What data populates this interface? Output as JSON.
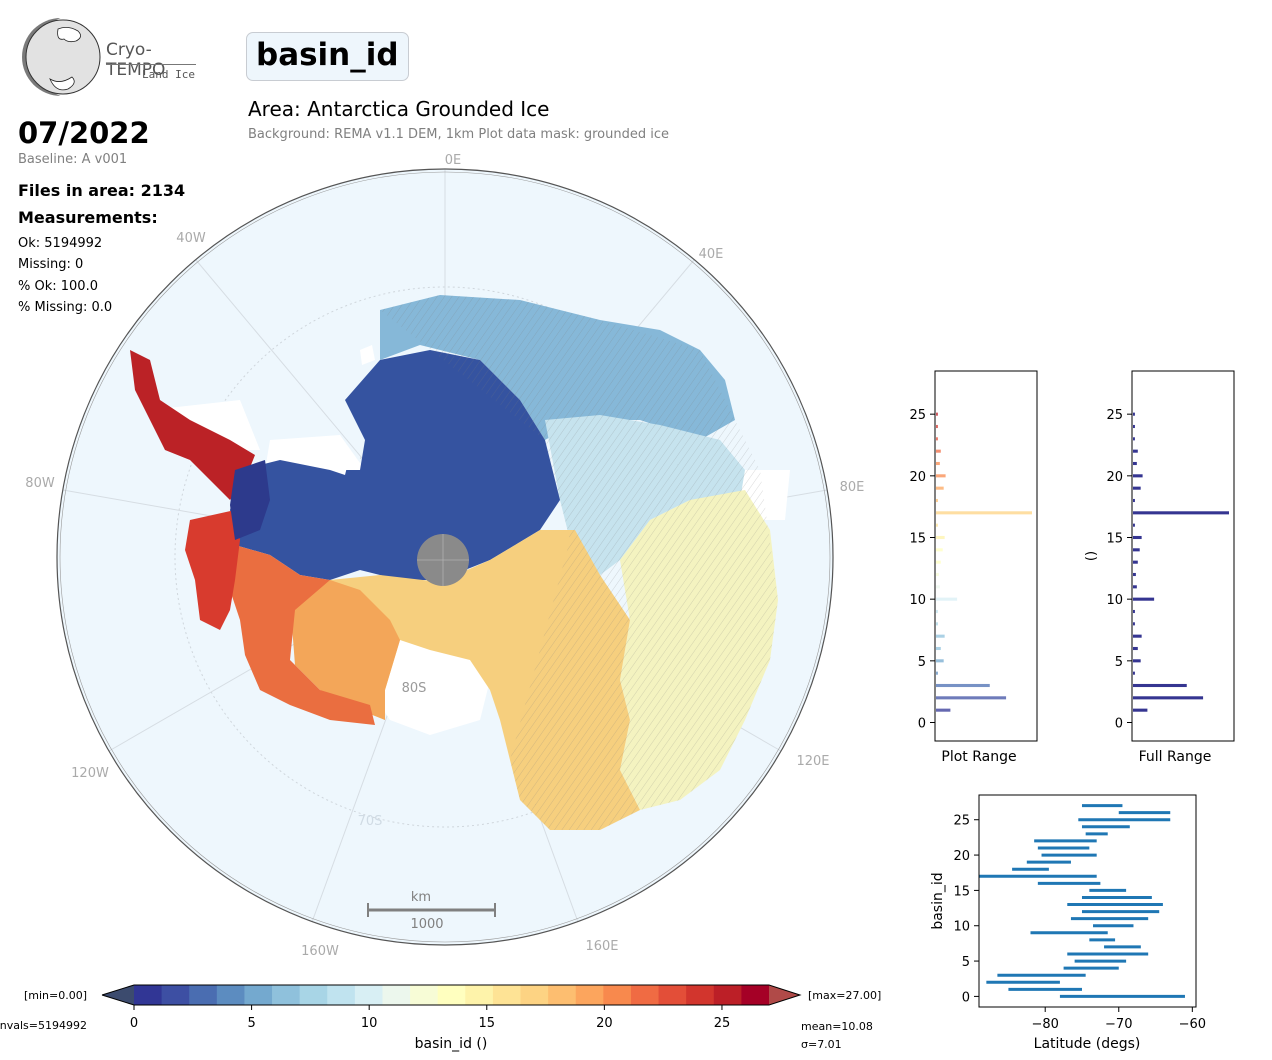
{
  "logo": {
    "title": "Cryo-TEMPO",
    "subtitle": "Land Ice"
  },
  "variable_name": "basin_id",
  "date": "07/2022",
  "baseline": "Baseline: A v001",
  "files_in_area": "Files in area: 2134",
  "measurements_heading": "Measurements:",
  "stats": {
    "ok": "Ok: 5194992",
    "missing": "Missing: 0",
    "pct_ok": "% Ok: 100.0",
    "pct_missing": "% Missing: 0.0"
  },
  "area_title": "Area: Antarctica Grounded Ice",
  "background_info": "Background: REMA v1.1 DEM, 1km   Plot data mask: grounded ice",
  "map": {
    "longitude_labels": [
      "0E",
      "40E",
      "80E",
      "120E",
      "160E",
      "160W",
      "120W",
      "80W",
      "40W"
    ],
    "latitude_labels": [
      "80S",
      "70S"
    ],
    "scale_bar": {
      "unit": "km",
      "value": "1000"
    }
  },
  "colorbar": {
    "min_label": "[min=0.00]",
    "max_label": "[max=27.00]",
    "nvals": "nvals=5194992",
    "mean": "mean=10.08",
    "sigma": "σ=7.01",
    "label": "basin_id ()",
    "ticks": [
      "0",
      "5",
      "10",
      "15",
      "20",
      "25"
    ],
    "range": [
      0,
      27
    ],
    "colors": [
      "#313695",
      "#3d4fa3",
      "#4a6db1",
      "#5c8cc0",
      "#74a9cf",
      "#8fc1dc",
      "#a8d5e6",
      "#c0e3ef",
      "#d8eff4",
      "#ecf7ed",
      "#f7fcd6",
      "#ffffbf",
      "#fef3aa",
      "#fee395",
      "#fdd383",
      "#fdbe70",
      "#fca55d",
      "#f8894d",
      "#f06b43",
      "#e34e38",
      "#d2352d",
      "#bc1f27",
      "#a50026"
    ],
    "under_color": "#3c4b6e",
    "over_color": "#b04a48"
  },
  "hist_plot_range": {
    "xlabel": "Plot Range",
    "ticks": [
      "0",
      "5",
      "10",
      "15",
      "20",
      "25"
    ]
  },
  "hist_full_range": {
    "xlabel": "Full Range",
    "ylabel": "()",
    "ticks": [
      "0",
      "5",
      "10",
      "15",
      "20",
      "25"
    ]
  },
  "chart_data": [
    {
      "type": "bar",
      "title": "",
      "xlabel": "Plot Range",
      "ylabel": "",
      "ylim": [
        -1.5,
        28.5
      ],
      "categories": [
        1,
        2,
        3,
        4,
        5,
        6,
        7,
        8,
        9,
        10,
        11,
        12,
        13,
        14,
        15,
        16,
        17,
        18,
        19,
        20,
        21,
        22,
        23,
        24,
        25
      ],
      "values": [
        0.15,
        0.73,
        0.56,
        0.02,
        0.08,
        0.05,
        0.09,
        0.02,
        0.02,
        0.22,
        0.04,
        0.03,
        0.05,
        0.07,
        0.09,
        0.02,
        1.0,
        0.02,
        0.08,
        0.1,
        0.04,
        0.05,
        0.02,
        0.02,
        0.02
      ]
    },
    {
      "type": "bar",
      "title": "",
      "xlabel": "Full Range",
      "ylabel": "()",
      "ylim": [
        -1.5,
        28.5
      ],
      "categories": [
        1,
        2,
        3,
        4,
        5,
        6,
        7,
        8,
        9,
        10,
        11,
        12,
        13,
        14,
        15,
        16,
        17,
        18,
        19,
        20,
        21,
        22,
        23,
        24,
        25
      ],
      "values": [
        0.15,
        0.73,
        0.56,
        0.02,
        0.08,
        0.05,
        0.09,
        0.02,
        0.02,
        0.22,
        0.04,
        0.03,
        0.05,
        0.07,
        0.09,
        0.02,
        1.0,
        0.02,
        0.08,
        0.1,
        0.04,
        0.05,
        0.02,
        0.02,
        0.02
      ]
    },
    {
      "type": "bar",
      "title": "",
      "xlabel": "Latitude (degs)",
      "ylabel": "basin_id",
      "xlim": [
        -89,
        -59.5
      ],
      "ylim": [
        -1.5,
        28.5
      ],
      "xticks": [
        "-80",
        "-70",
        "-60"
      ],
      "yticks": [
        "0",
        "5",
        "10",
        "15",
        "20",
        "25"
      ],
      "categories": [
        0,
        1,
        2,
        3,
        4,
        5,
        6,
        7,
        8,
        9,
        10,
        11,
        12,
        13,
        14,
        15,
        16,
        17,
        18,
        19,
        20,
        21,
        22,
        23,
        24,
        25,
        26,
        27
      ],
      "ranges": [
        [
          -78,
          -61
        ],
        [
          -85,
          -75
        ],
        [
          -88,
          -78
        ],
        [
          -86.5,
          -74.5
        ],
        [
          -77.5,
          -70
        ],
        [
          -76,
          -69
        ],
        [
          -77,
          -66
        ],
        [
          -72,
          -67
        ],
        [
          -74,
          -70.5
        ],
        [
          -82,
          -71.5
        ],
        [
          -73.5,
          -68
        ],
        [
          -76.5,
          -66
        ],
        [
          -75,
          -64.5
        ],
        [
          -77,
          -64
        ],
        [
          -75,
          -65.5
        ],
        [
          -74,
          -69
        ],
        [
          -81,
          -72.5
        ],
        [
          -89,
          -73
        ],
        [
          -84.5,
          -79.5
        ],
        [
          -82.5,
          -76.5
        ],
        [
          -80.5,
          -73
        ],
        [
          -81,
          -74
        ],
        [
          -81.5,
          -73
        ],
        [
          -74.5,
          -71.5
        ],
        [
          -75,
          -68.5
        ],
        [
          -75.5,
          -63
        ],
        [
          -70,
          -63
        ],
        [
          -75,
          -69.5
        ]
      ]
    }
  ]
}
